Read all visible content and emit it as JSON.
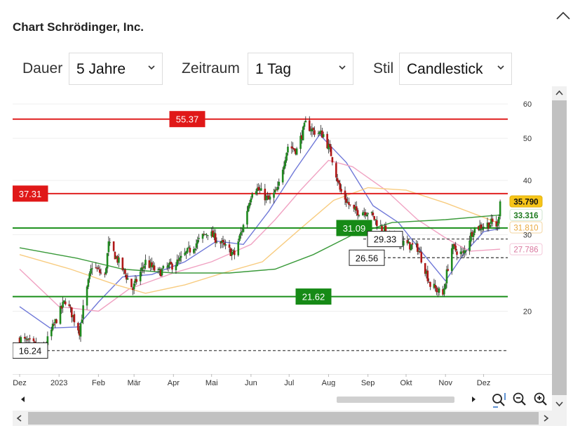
{
  "header": {
    "title": "Chart Schrödinger, Inc."
  },
  "controls": {
    "duration_label": "Dauer",
    "duration_value": "5 Jahre",
    "period_label": "Zeitraum",
    "period_value": "1 Tag",
    "style_label": "Stil",
    "style_value": "Candlestick"
  },
  "colors": {
    "candle_up": "#1f8a1f",
    "candle_down": "#b01818",
    "ma_blue": "#6f78d8",
    "ma_pink": "#f0a2c2",
    "ma_orange": "#f8cc80",
    "ma_green": "#3a9a3a",
    "resistance": "#e02020",
    "support": "#1a8f1a"
  },
  "chart_data": {
    "type": "candlestick",
    "title": "",
    "xlabel": "",
    "ylabel": "",
    "y_scale": "log",
    "ylim": [
      14.5,
      63
    ],
    "y_ticks": [
      20,
      30,
      40,
      50,
      60
    ],
    "x_range": [
      "2022-12-01",
      "2023-12-20"
    ],
    "x_ticks": [
      {
        "label": "Dez",
        "date": "2022-12-01"
      },
      {
        "label": "2023",
        "date": "2023-01-01"
      },
      {
        "label": "Feb",
        "date": "2023-02-01"
      },
      {
        "label": "Mär",
        "date": "2023-03-01"
      },
      {
        "label": "Apr",
        "date": "2023-04-01"
      },
      {
        "label": "Mai",
        "date": "2023-05-01"
      },
      {
        "label": "Jun",
        "date": "2023-06-01"
      },
      {
        "label": "Jul",
        "date": "2023-07-01"
      },
      {
        "label": "Aug",
        "date": "2023-08-01"
      },
      {
        "label": "Sep",
        "date": "2023-09-01"
      },
      {
        "label": "Okt",
        "date": "2023-10-01"
      },
      {
        "label": "Nov",
        "date": "2023-11-01"
      },
      {
        "label": "Dez",
        "date": "2023-12-01"
      }
    ],
    "price_path": [
      [
        "2022-12-01",
        17.3
      ],
      [
        "2022-12-20",
        16.3
      ],
      [
        "2023-01-06",
        21.2
      ],
      [
        "2023-01-17",
        18.0
      ],
      [
        "2023-01-27",
        25.5
      ],
      [
        "2023-02-06",
        24.0
      ],
      [
        "2023-02-09",
        28.5
      ],
      [
        "2023-02-20",
        25.0
      ],
      [
        "2023-02-28",
        22.5
      ],
      [
        "2023-03-10",
        26.0
      ],
      [
        "2023-03-20",
        24.5
      ],
      [
        "2023-04-05",
        26.0
      ],
      [
        "2023-04-18",
        28.5
      ],
      [
        "2023-04-28",
        30.5
      ],
      [
        "2023-05-12",
        28.0
      ],
      [
        "2023-05-19",
        27.0
      ],
      [
        "2023-05-26",
        31.5
      ],
      [
        "2023-06-03",
        39.0
      ],
      [
        "2023-06-15",
        36.0
      ],
      [
        "2023-06-22",
        38.0
      ],
      [
        "2023-06-30",
        48.0
      ],
      [
        "2023-07-07",
        47.0
      ],
      [
        "2023-07-14",
        54.0
      ],
      [
        "2023-07-20",
        52.0
      ],
      [
        "2023-07-28",
        51.0
      ],
      [
        "2023-08-03",
        46.0
      ],
      [
        "2023-08-10",
        38.0
      ],
      [
        "2023-08-20",
        34.0
      ],
      [
        "2023-09-01",
        34.0
      ],
      [
        "2023-09-12",
        31.0
      ],
      [
        "2023-09-20",
        29.5
      ],
      [
        "2023-10-01",
        28.5
      ],
      [
        "2023-10-10",
        28.0
      ],
      [
        "2023-10-20",
        23.0
      ],
      [
        "2023-10-30",
        21.8
      ],
      [
        "2023-11-06",
        28.0
      ],
      [
        "2023-11-15",
        27.0
      ],
      [
        "2023-11-23",
        31.0
      ],
      [
        "2023-12-01",
        31.5
      ],
      [
        "2023-12-08",
        32.0
      ],
      [
        "2023-12-12",
        31.5
      ],
      [
        "2023-12-14",
        35.8
      ]
    ],
    "moving_averages": [
      {
        "name": "",
        "color": "#6f78d8",
        "value_label": "",
        "points": [
          [
            "2022-12-01",
            20.5
          ],
          [
            "2022-12-25",
            18.3
          ],
          [
            "2023-01-15",
            18.4
          ],
          [
            "2023-02-01",
            21.0
          ],
          [
            "2023-02-20",
            24.0
          ],
          [
            "2023-03-15",
            24.3
          ],
          [
            "2023-04-10",
            26.0
          ],
          [
            "2023-05-05",
            29.0
          ],
          [
            "2023-05-26",
            28.5
          ],
          [
            "2023-06-15",
            34.0
          ],
          [
            "2023-07-05",
            42.0
          ],
          [
            "2023-07-25",
            51.0
          ],
          [
            "2023-08-15",
            44.0
          ],
          [
            "2023-09-05",
            35.0
          ],
          [
            "2023-09-25",
            32.0
          ],
          [
            "2023-10-15",
            27.0
          ],
          [
            "2023-11-01",
            23.5
          ],
          [
            "2023-11-15",
            27.0
          ],
          [
            "2023-12-01",
            30.5
          ],
          [
            "2023-12-14",
            31.0
          ]
        ]
      },
      {
        "name": "",
        "color": "#f0a2c2",
        "value_label": "27.786",
        "points": [
          [
            "2022-12-01",
            25.0
          ],
          [
            "2023-01-01",
            20.5
          ],
          [
            "2023-02-01",
            20.0
          ],
          [
            "2023-02-25",
            22.5
          ],
          [
            "2023-04-01",
            24.5
          ],
          [
            "2023-05-01",
            26.0
          ],
          [
            "2023-06-01",
            28.5
          ],
          [
            "2023-06-20",
            32.5
          ],
          [
            "2023-07-10",
            38.0
          ],
          [
            "2023-08-01",
            44.5
          ],
          [
            "2023-08-20",
            43.0
          ],
          [
            "2023-09-15",
            38.0
          ],
          [
            "2023-10-10",
            32.5
          ],
          [
            "2023-11-01",
            29.5
          ],
          [
            "2023-11-20",
            27.5
          ],
          [
            "2023-12-14",
            27.786
          ]
        ]
      },
      {
        "name": "",
        "color": "#f8cc80",
        "value_label": "31.810",
        "points": [
          [
            "2022-12-01",
            27.0
          ],
          [
            "2023-01-10",
            25.0
          ],
          [
            "2023-02-15",
            23.0
          ],
          [
            "2023-03-10",
            22.0
          ],
          [
            "2023-04-10",
            23.0
          ],
          [
            "2023-05-10",
            24.5
          ],
          [
            "2023-06-10",
            26.0
          ],
          [
            "2023-07-10",
            31.0
          ],
          [
            "2023-08-05",
            36.0
          ],
          [
            "2023-09-01",
            38.5
          ],
          [
            "2023-10-01",
            38.0
          ],
          [
            "2023-11-01",
            35.5
          ],
          [
            "2023-12-14",
            31.81
          ]
        ]
      },
      {
        "name": "",
        "color": "#3a9a3a",
        "value_label": "33.316",
        "points": [
          [
            "2022-12-01",
            28.0
          ],
          [
            "2023-01-15",
            26.5
          ],
          [
            "2023-02-20",
            25.0
          ],
          [
            "2023-04-01",
            24.5
          ],
          [
            "2023-05-15",
            24.5
          ],
          [
            "2023-06-20",
            25.0
          ],
          [
            "2023-07-20",
            27.0
          ],
          [
            "2023-08-20",
            30.0
          ],
          [
            "2023-09-20",
            32.0
          ],
          [
            "2023-11-01",
            32.5
          ],
          [
            "2023-12-14",
            33.316
          ]
        ]
      }
    ],
    "last_price_label": "35.790",
    "horizontal_lines": [
      {
        "value": 55.37,
        "label": "55.37",
        "style": "solid",
        "kind": "resistance",
        "label_at": "middle"
      },
      {
        "value": 37.31,
        "label": "37.31",
        "style": "solid",
        "kind": "resistance",
        "label_at": "left"
      },
      {
        "value": 31.09,
        "label": "31.09",
        "style": "solid",
        "kind": "support",
        "label_at": "middle"
      },
      {
        "value": 21.62,
        "label": "21.62",
        "style": "solid",
        "kind": "support",
        "label_at": "middle"
      },
      {
        "value": 29.33,
        "label": "29.33",
        "style": "dashed",
        "kind": "level",
        "label_at": "middle"
      },
      {
        "value": 26.56,
        "label": "26.56",
        "style": "dashed",
        "kind": "level",
        "label_at": "middle"
      },
      {
        "value": 16.24,
        "label": "16.24",
        "style": "dashed",
        "kind": "level",
        "label_at": "left"
      }
    ],
    "grid": true,
    "legend": "none"
  }
}
